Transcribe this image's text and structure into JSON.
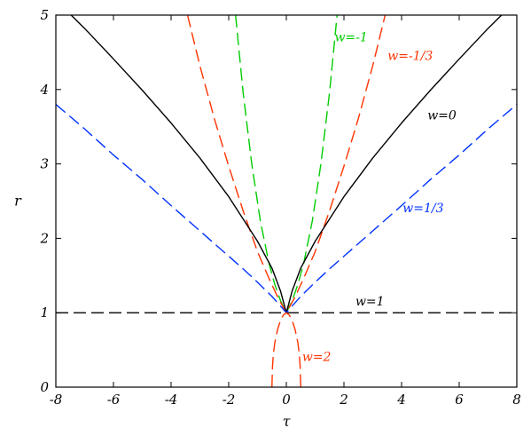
{
  "chart_data": {
    "type": "line",
    "title": "",
    "xlabel": "τ",
    "ylabel": "r",
    "xlim": [
      -8,
      8
    ],
    "ylim": [
      0,
      5
    ],
    "xticks": [
      "-8",
      "-6",
      "-4",
      "-2",
      "0",
      "2",
      "4",
      "6",
      "8"
    ],
    "yticks": [
      "0",
      "1",
      "2",
      "3",
      "4",
      "5"
    ],
    "grid": false,
    "legend": "none",
    "series": [
      {
        "name": "w=-1",
        "color": "#00cc00",
        "style": "dashed",
        "x": [
          -1.762,
          -1.5,
          -1.2,
          -0.9,
          -0.6,
          -0.4,
          -0.2,
          -0.1,
          0,
          0.1,
          0.2,
          0.4,
          0.6,
          0.9,
          1.2,
          1.5,
          1.762
        ],
        "y": [
          5.0,
          3.96,
          3.0,
          2.23,
          1.66,
          1.38,
          1.16,
          1.08,
          1.0,
          1.08,
          1.16,
          1.38,
          1.66,
          2.23,
          3.0,
          3.96,
          5.0
        ]
      },
      {
        "name": "w=-1/3",
        "color": "#ff3300",
        "style": "dashed",
        "x": [
          -3.43,
          -3.0,
          -2.5,
          -2.0,
          -1.5,
          -1.0,
          -0.6,
          -0.3,
          -0.1,
          0,
          0.1,
          0.3,
          0.6,
          1.0,
          1.5,
          2.0,
          2.5,
          3.0,
          3.43
        ],
        "y": [
          5.0,
          4.32,
          3.61,
          2.97,
          2.37,
          1.82,
          1.46,
          1.21,
          1.07,
          1.0,
          1.07,
          1.21,
          1.46,
          1.82,
          2.37,
          2.97,
          3.61,
          4.32,
          5.0
        ]
      },
      {
        "name": "w=0",
        "color": "#000000",
        "style": "solid",
        "x": [
          -7.47,
          -7.0,
          -6.0,
          -5.0,
          -4.0,
          -3.0,
          -2.0,
          -1.0,
          -0.5,
          -0.2,
          0,
          0.2,
          0.5,
          1.0,
          2.0,
          3.0,
          4.0,
          5.0,
          6.0,
          7.0,
          7.47
        ],
        "y": [
          5.0,
          4.82,
          4.41,
          3.99,
          3.55,
          3.08,
          2.56,
          1.96,
          1.6,
          1.29,
          1.0,
          1.29,
          1.6,
          1.96,
          2.56,
          3.08,
          3.55,
          3.99,
          4.41,
          4.82,
          5.0
        ],
        "label": "w=0"
      },
      {
        "name": "w=1/3",
        "color": "#0033ff",
        "style": "dashed",
        "x": [
          -8,
          -7,
          -6,
          -5,
          -4,
          -3,
          -2,
          -1.5,
          -1,
          -0.5,
          -0.2,
          0,
          0.2,
          0.5,
          1,
          1.5,
          2,
          3,
          4,
          5,
          6,
          7,
          8
        ],
        "y": [
          3.8,
          3.47,
          3.12,
          2.79,
          2.44,
          2.1,
          1.76,
          1.59,
          1.41,
          1.22,
          1.09,
          1.0,
          1.09,
          1.22,
          1.41,
          1.59,
          1.76,
          2.1,
          2.44,
          2.79,
          3.12,
          3.47,
          3.8
        ]
      },
      {
        "name": "w=1",
        "color": "#000000",
        "style": "dashed",
        "x": [
          -8,
          8
        ],
        "y": [
          1.0,
          1.0
        ]
      },
      {
        "name": "w=2",
        "color": "#ff3300",
        "style": "dashed",
        "x": [
          -0.5,
          -0.48,
          -0.45,
          -0.4,
          -0.3,
          -0.2,
          -0.1,
          0,
          0.1,
          0.2,
          0.3,
          0.4,
          0.45,
          0.48,
          0.5
        ],
        "y": [
          0.0,
          0.28,
          0.44,
          0.6,
          0.78,
          0.9,
          0.97,
          1.0,
          0.97,
          0.9,
          0.78,
          0.6,
          0.44,
          0.28,
          0.0
        ]
      }
    ],
    "annotations": [
      {
        "text": "w=-1",
        "x": 2.25,
        "y": 4.65,
        "color": "#00cc00"
      },
      {
        "text": "w=-1/3",
        "x": 4.3,
        "y": 4.4,
        "color": "#ff3300"
      },
      {
        "text": "w=0",
        "x": 5.4,
        "y": 3.6,
        "color": "#000000"
      },
      {
        "text": "w=1/3",
        "x": 4.75,
        "y": 2.35,
        "color": "#0033ff"
      },
      {
        "text": "w=1",
        "x": 2.9,
        "y": 1.1,
        "color": "#000000"
      },
      {
        "text": "w=2",
        "x": 1.05,
        "y": 0.35,
        "color": "#ff3300"
      }
    ]
  }
}
